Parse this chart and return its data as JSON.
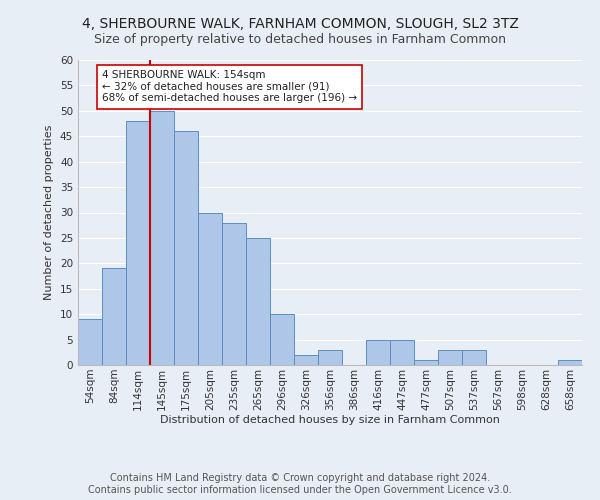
{
  "title1": "4, SHERBOURNE WALK, FARNHAM COMMON, SLOUGH, SL2 3TZ",
  "title2": "Size of property relative to detached houses in Farnham Common",
  "xlabel": "Distribution of detached houses by size in Farnham Common",
  "ylabel": "Number of detached properties",
  "categories": [
    "54sqm",
    "84sqm",
    "114sqm",
    "145sqm",
    "175sqm",
    "205sqm",
    "235sqm",
    "265sqm",
    "296sqm",
    "326sqm",
    "356sqm",
    "386sqm",
    "416sqm",
    "447sqm",
    "477sqm",
    "507sqm",
    "537sqm",
    "567sqm",
    "598sqm",
    "628sqm",
    "658sqm"
  ],
  "values": [
    9,
    19,
    48,
    50,
    46,
    30,
    28,
    25,
    10,
    2,
    3,
    0,
    5,
    5,
    1,
    3,
    3,
    0,
    0,
    0,
    1
  ],
  "bar_color": "#aec6e8",
  "bar_edge_color": "#5a8fc2",
  "vline_index": 3,
  "vline_color": "#cc0000",
  "annotation_text": "4 SHERBOURNE WALK: 154sqm\n← 32% of detached houses are smaller (91)\n68% of semi-detached houses are larger (196) →",
  "annotation_box_color": "#ffffff",
  "annotation_box_edge_color": "#cc0000",
  "ylim": [
    0,
    60
  ],
  "yticks": [
    0,
    5,
    10,
    15,
    20,
    25,
    30,
    35,
    40,
    45,
    50,
    55,
    60
  ],
  "background_color": "#e8eef5",
  "grid_color": "#ffffff",
  "footer1": "Contains HM Land Registry data © Crown copyright and database right 2024.",
  "footer2": "Contains public sector information licensed under the Open Government Licence v3.0.",
  "title1_fontsize": 10,
  "title2_fontsize": 9,
  "axis_label_fontsize": 8,
  "tick_fontsize": 7.5,
  "annotation_fontsize": 7.5,
  "footer_fontsize": 7
}
